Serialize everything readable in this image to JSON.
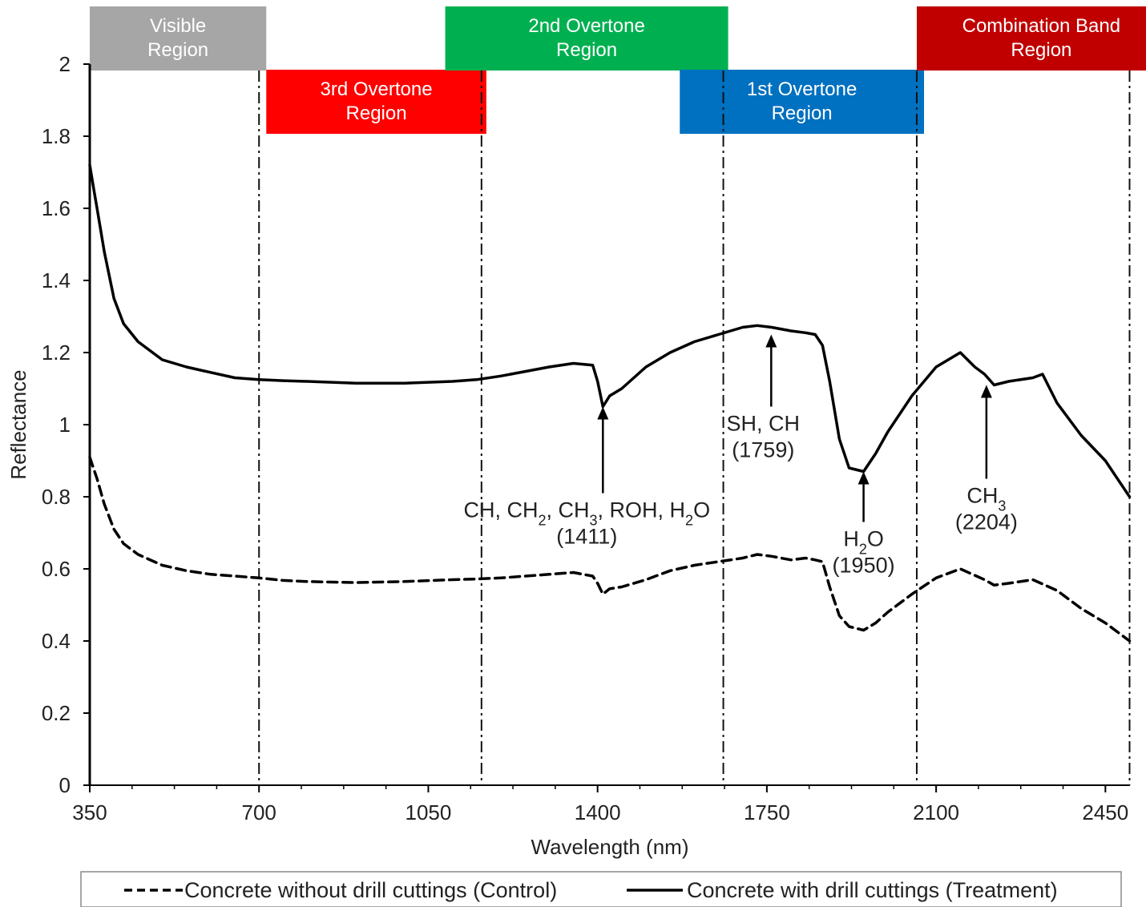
{
  "chart_data": {
    "type": "line",
    "xlabel": "Wavelength (nm)",
    "ylabel": "Reflectance",
    "xlim": [
      350,
      2500
    ],
    "ylim": [
      0,
      2
    ],
    "xticks": [
      "350",
      "700",
      "1050",
      "1400",
      "1750",
      "2100",
      "2450"
    ],
    "yticks": [
      "0",
      "0.2",
      "0.4",
      "0.6",
      "0.8",
      "1",
      "1.2",
      "1.4",
      "1.6",
      "1.8",
      "2"
    ],
    "grid": false,
    "legend_position": "bottom",
    "series": [
      {
        "name": "Concrete without drill cuttings (Control)",
        "style": "dashed",
        "x": [
          350,
          355,
          365,
          380,
          400,
          420,
          450,
          500,
          550,
          600,
          650,
          700,
          750,
          800,
          900,
          1000,
          1100,
          1150,
          1200,
          1300,
          1350,
          1390,
          1400,
          1411,
          1425,
          1450,
          1500,
          1550,
          1600,
          1650,
          1700,
          1730,
          1760,
          1800,
          1830,
          1850,
          1865,
          1880,
          1900,
          1920,
          1950,
          1975,
          2000,
          2050,
          2100,
          2150,
          2200,
          2220,
          2250,
          2300,
          2350,
          2400,
          2450,
          2500
        ],
        "y": [
          0.91,
          0.89,
          0.85,
          0.78,
          0.71,
          0.67,
          0.64,
          0.61,
          0.595,
          0.585,
          0.58,
          0.575,
          0.568,
          0.565,
          0.562,
          0.565,
          0.57,
          0.572,
          0.575,
          0.585,
          0.59,
          0.58,
          0.56,
          0.53,
          0.545,
          0.55,
          0.57,
          0.595,
          0.61,
          0.62,
          0.63,
          0.64,
          0.635,
          0.625,
          0.63,
          0.625,
          0.62,
          0.55,
          0.47,
          0.44,
          0.43,
          0.45,
          0.48,
          0.53,
          0.575,
          0.6,
          0.57,
          0.555,
          0.56,
          0.57,
          0.54,
          0.49,
          0.45,
          0.4
        ]
      },
      {
        "name": "Concrete with drill cuttings (Treatment)",
        "style": "solid",
        "x": [
          350,
          355,
          360,
          365,
          380,
          400,
          420,
          450,
          500,
          550,
          600,
          650,
          700,
          750,
          800,
          900,
          1000,
          1100,
          1150,
          1200,
          1300,
          1350,
          1390,
          1400,
          1411,
          1425,
          1450,
          1500,
          1550,
          1600,
          1650,
          1700,
          1730,
          1760,
          1800,
          1830,
          1850,
          1865,
          1880,
          1900,
          1920,
          1950,
          1975,
          2000,
          2050,
          2100,
          2150,
          2180,
          2200,
          2220,
          2250,
          2300,
          2320,
          2350,
          2400,
          2450,
          2500
        ],
        "y": [
          1.72,
          1.68,
          1.64,
          1.6,
          1.48,
          1.35,
          1.28,
          1.23,
          1.18,
          1.16,
          1.145,
          1.13,
          1.125,
          1.122,
          1.12,
          1.115,
          1.115,
          1.12,
          1.125,
          1.135,
          1.16,
          1.17,
          1.165,
          1.12,
          1.05,
          1.08,
          1.1,
          1.16,
          1.2,
          1.23,
          1.25,
          1.27,
          1.275,
          1.27,
          1.26,
          1.255,
          1.25,
          1.22,
          1.12,
          0.96,
          0.88,
          0.87,
          0.92,
          0.98,
          1.08,
          1.16,
          1.2,
          1.16,
          1.14,
          1.11,
          1.12,
          1.13,
          1.14,
          1.06,
          0.97,
          0.9,
          0.8
        ]
      }
    ],
    "region_boundaries": [
      700,
      1160,
      1660,
      2060,
      2500
    ],
    "regions": [
      {
        "label_line1": "Visible",
        "label_line2": "Region",
        "color": "#a6a6a6",
        "x_from": 350,
        "x_to": 715,
        "row": "top"
      },
      {
        "label_line1": "3rd Overtone",
        "label_line2": "Region",
        "color": "#ff0000",
        "x_from": 715,
        "x_to": 1170,
        "row": "bottom"
      },
      {
        "label_line1": "2nd Overtone",
        "label_line2": "Region",
        "color": "#00b050",
        "x_from": 1085,
        "x_to": 1670,
        "row": "top"
      },
      {
        "label_line1": "1st Overtone",
        "label_line2": "Region",
        "color": "#0070c0",
        "x_from": 1570,
        "x_to": 2075,
        "row": "bottom"
      },
      {
        "label_line1": "Combination Band",
        "label_line2": "Region",
        "color": "#c00000",
        "x_from": 2060,
        "x_to": 2575,
        "row": "top"
      }
    ],
    "annotations": [
      {
        "html_line1": "CH, CH<tspan baseline-shift='sub' font-size='18'>2</tspan>, CH<tspan baseline-shift='sub' font-size='18'>3</tspan>, ROH, H<tspan baseline-shift='sub' font-size='18'>2</tspan>O",
        "text_line1": "CH, CH2, CH3, ROH, H2O",
        "text_line2": "(1411)",
        "x": 1411,
        "y": 1.05,
        "arrow_from_y": 0.81,
        "text_pos": "below"
      },
      {
        "html_line1": "SH, CH",
        "text_line1": "SH, CH",
        "text_line2": "(1759)",
        "x": 1759,
        "y": 1.25,
        "arrow_from_y": 1.05,
        "text_pos": "below"
      },
      {
        "html_line1": "H<tspan baseline-shift='sub' font-size='18'>2</tspan>O",
        "text_line1": "H2O",
        "text_line2": "(1950)",
        "x": 1950,
        "y": 0.87,
        "arrow_from_y": 0.73,
        "text_pos": "below"
      },
      {
        "html_line1": "CH<tspan baseline-shift='sub' font-size='18'>3</tspan>",
        "text_line1": "CH3",
        "text_line2": "(2204)",
        "x": 2204,
        "y": 1.11,
        "arrow_from_y": 0.85,
        "text_pos": "below"
      }
    ]
  }
}
